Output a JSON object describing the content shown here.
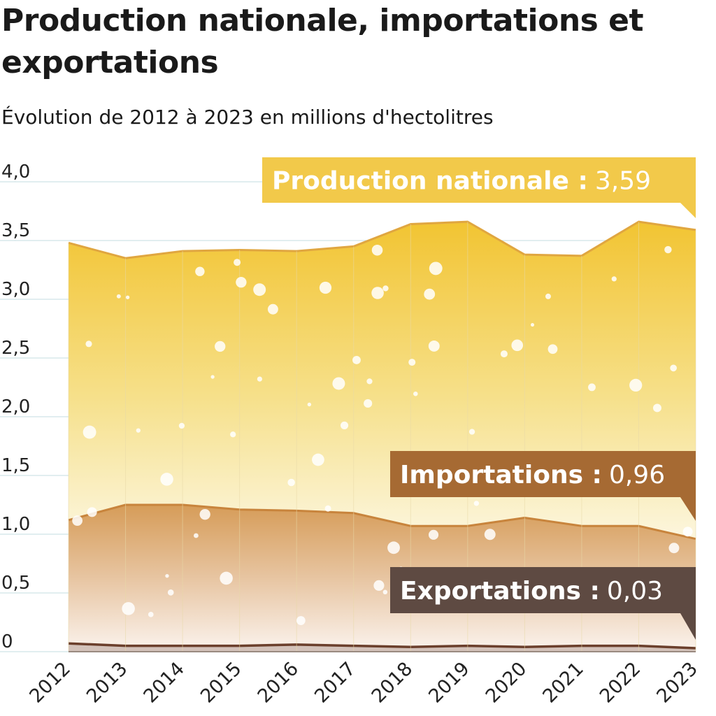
{
  "title": "Production nationale, importations et exportations",
  "subtitle": "Évolution de 2012 à 2023 en millions d'hectolitres",
  "colors": {
    "production": "#f2c63a",
    "production_line": "#e0a640",
    "importations": "#d9a064",
    "importations_line": "#c8843c",
    "importations_label": "#a66a33",
    "exportations": "#6b3f2c",
    "exportations_label": "#5e4a42",
    "grid": "#cfe3e6"
  },
  "chart_data": {
    "type": "area",
    "x": [
      2012,
      2013,
      2014,
      2015,
      2016,
      2017,
      2018,
      2019,
      2020,
      2021,
      2022,
      2023
    ],
    "ylim": [
      0,
      4.0
    ],
    "yticks": [
      {
        "value": 0,
        "label": "0"
      },
      {
        "value": 0.5,
        "label": "0,5"
      },
      {
        "value": 1.0,
        "label": "1,0"
      },
      {
        "value": 1.5,
        "label": "1,5"
      },
      {
        "value": 2.0,
        "label": "2,0"
      },
      {
        "value": 2.5,
        "label": "2,5"
      },
      {
        "value": 3.0,
        "label": "3,0"
      },
      {
        "value": 3.5,
        "label": "3,5"
      },
      {
        "value": 4.0,
        "label": "4,0"
      }
    ],
    "grid": true,
    "series": [
      {
        "key": "production",
        "name": "Production nationale",
        "values": [
          3.48,
          3.35,
          3.41,
          3.42,
          3.41,
          3.45,
          3.64,
          3.66,
          3.38,
          3.37,
          3.66,
          3.59
        ],
        "label_name": "Production nationale :",
        "label_value": "3,59"
      },
      {
        "key": "importations",
        "name": "Importations",
        "values": [
          1.12,
          1.25,
          1.25,
          1.21,
          1.2,
          1.18,
          1.07,
          1.07,
          1.14,
          1.07,
          1.07,
          0.96
        ],
        "label_name": "Importations :",
        "label_value": "0,96"
      },
      {
        "key": "exportations",
        "name": "Exportations",
        "values": [
          0.07,
          0.05,
          0.05,
          0.05,
          0.06,
          0.05,
          0.04,
          0.05,
          0.04,
          0.05,
          0.05,
          0.03
        ],
        "label_name": "Exportations :",
        "label_value": "0,03"
      }
    ]
  }
}
